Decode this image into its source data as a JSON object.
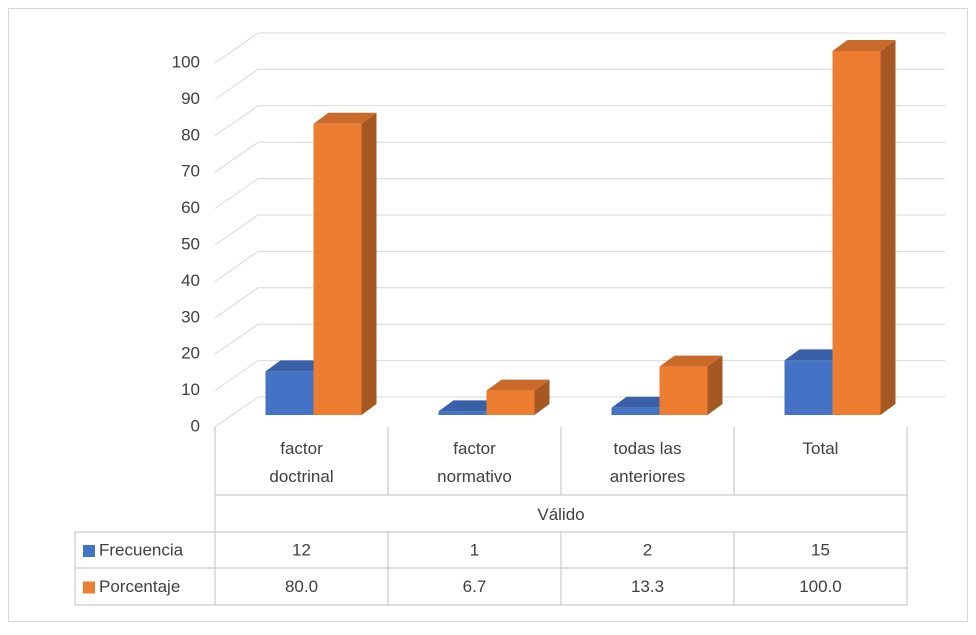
{
  "chart_data": {
    "type": "bar3d",
    "categories": [
      "factor doctrinal",
      "factor normativo",
      "todas las anteriores",
      "Total"
    ],
    "group_label": "Válido",
    "series": [
      {
        "name": "Frecuencia",
        "color": "#4472c4",
        "values": [
          12,
          1,
          2,
          15
        ]
      },
      {
        "name": "Porcentaje",
        "color": "#ed7d31",
        "values": [
          80.0,
          6.7,
          13.3,
          100.0
        ],
        "value_labels": [
          "80.0",
          "6.7",
          "13.3",
          "100.0"
        ]
      }
    ],
    "ylim": [
      0,
      100
    ],
    "yticks": [
      0,
      10,
      20,
      30,
      40,
      50,
      60,
      70,
      80,
      90,
      100
    ],
    "grid": true
  }
}
